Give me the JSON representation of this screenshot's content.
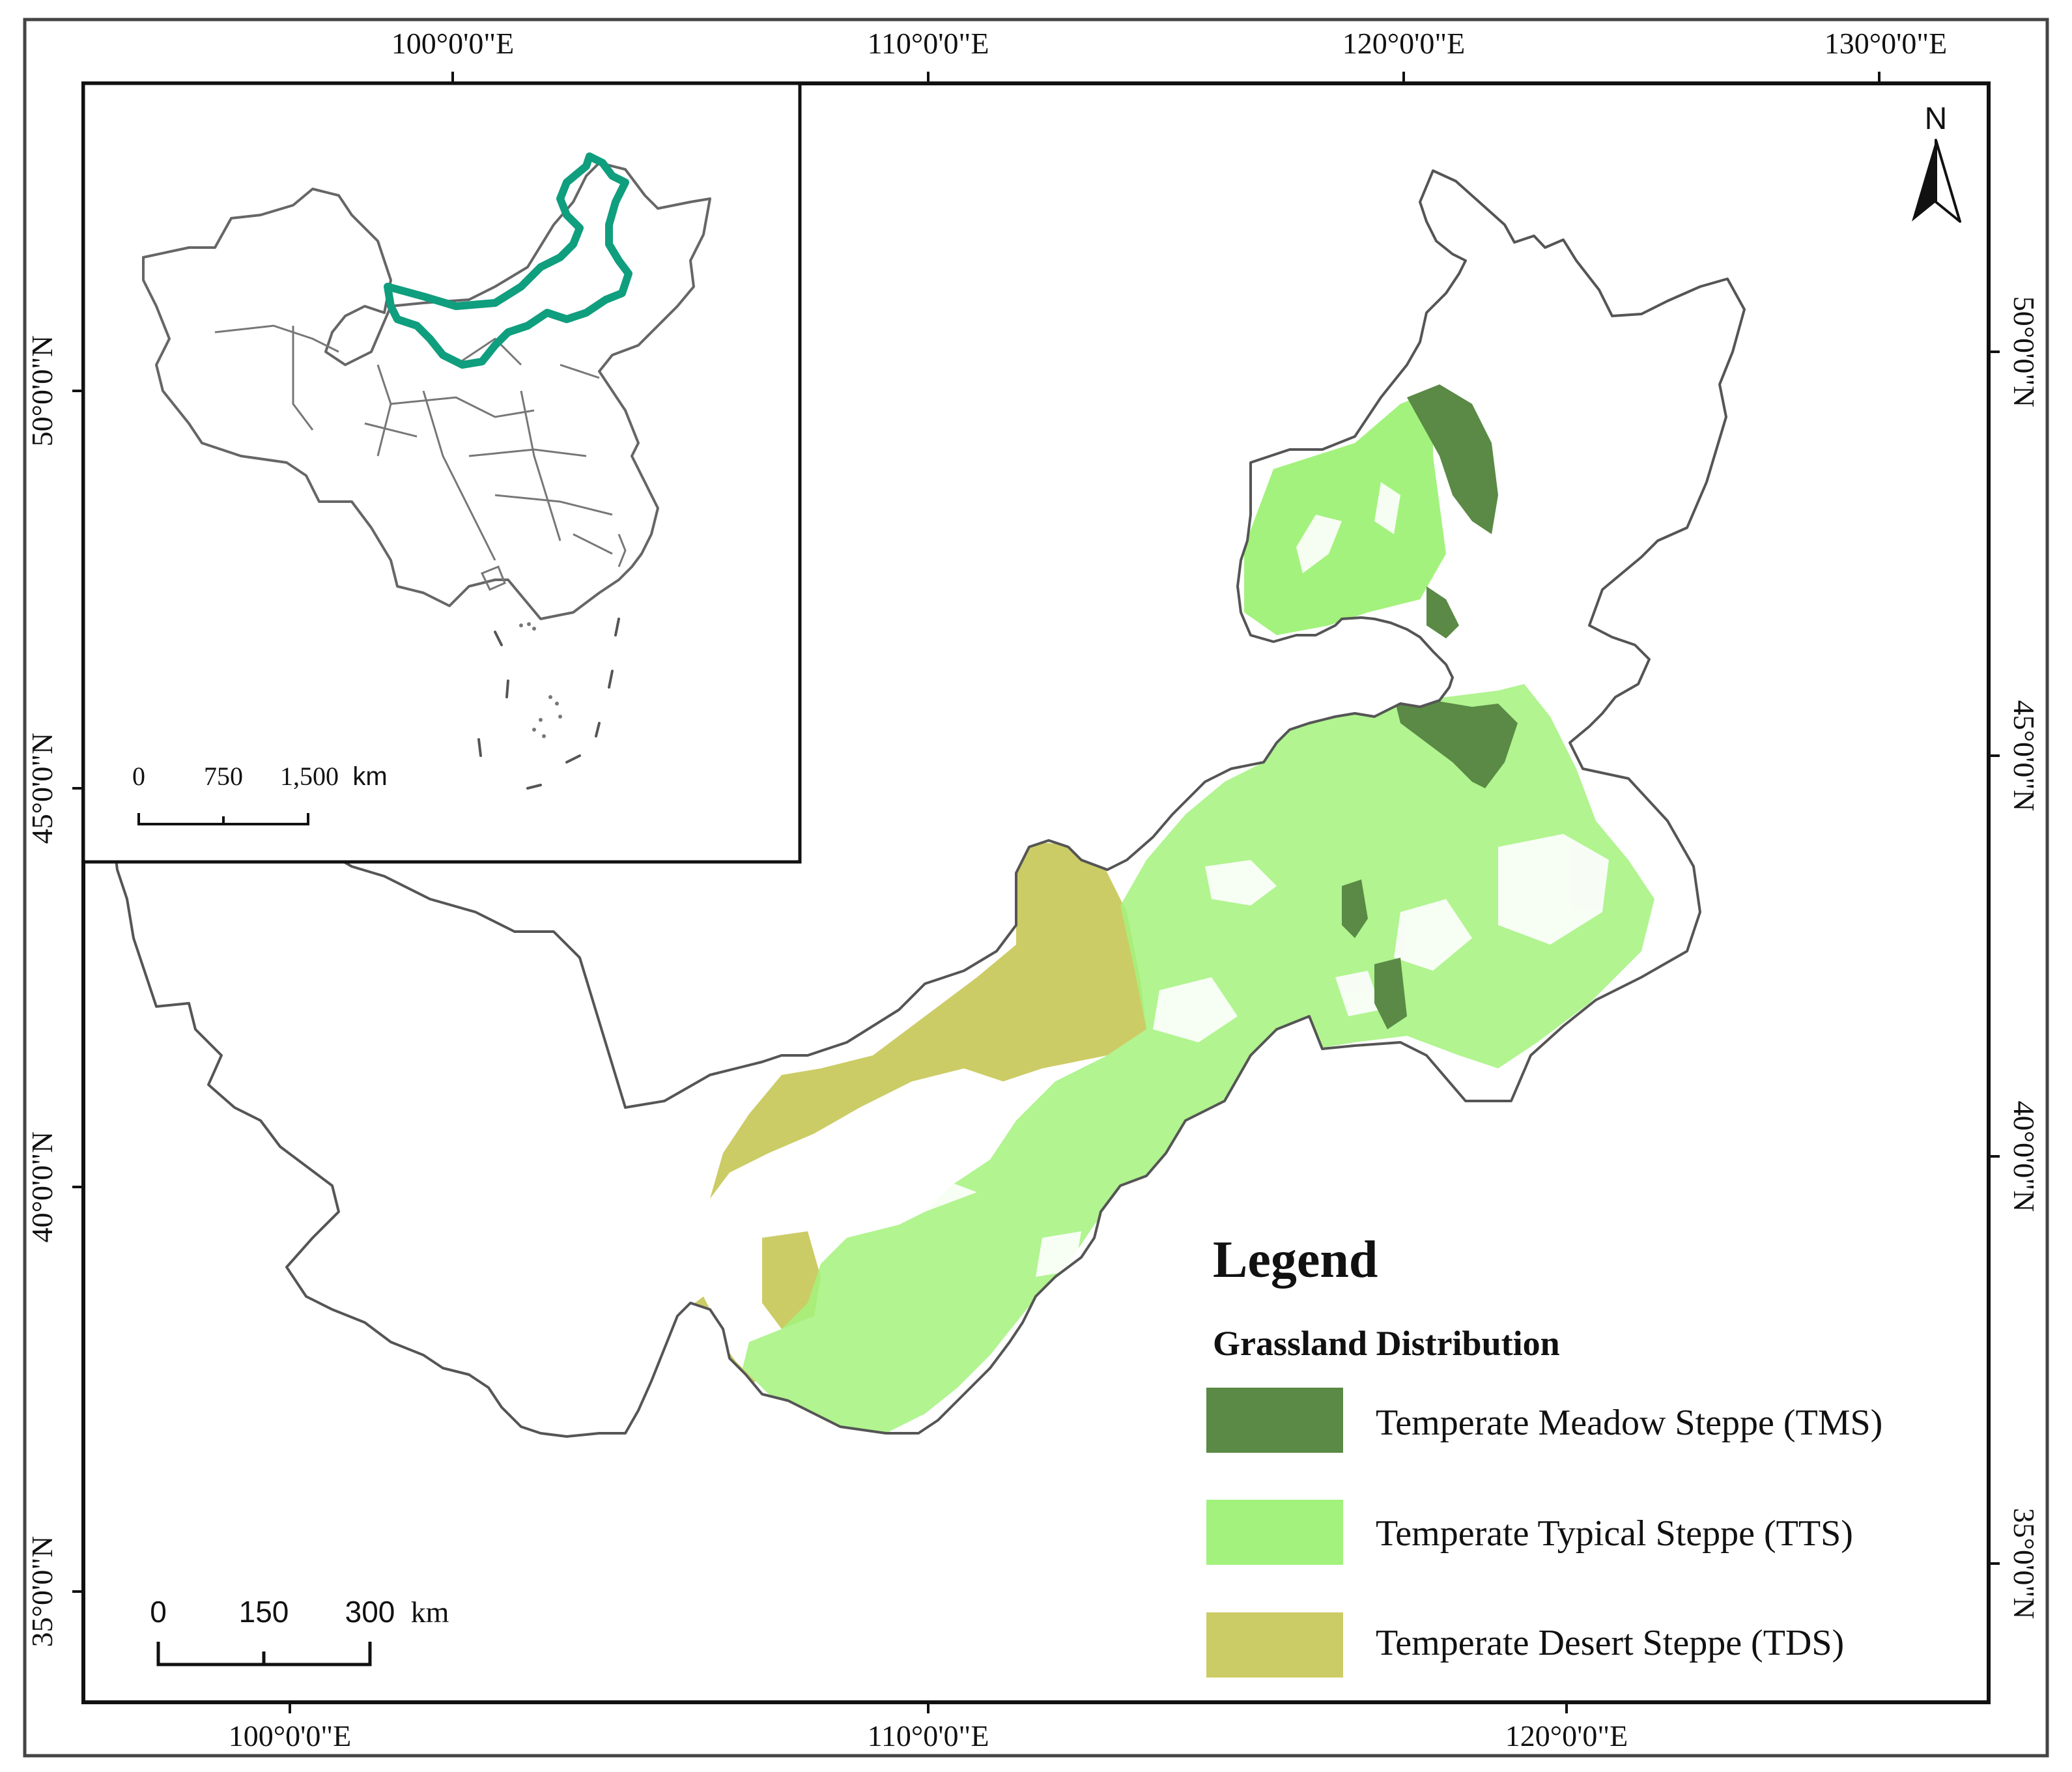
{
  "outer_axes": {
    "top_labels": [
      "100°0'0\"E",
      "110°0'0\"E",
      "120°0'0\"E",
      "130°0'0\"E"
    ],
    "bottom_labels": [
      "100°0'0\"E",
      "110°0'0\"E",
      "120°0'0\"E"
    ],
    "left_labels": [
      "50°0'0\"N",
      "45°0'0\"N",
      "40°0'0\"N",
      "35°0'0\"N"
    ],
    "right_labels": [
      "50°0'0\"N",
      "45°0'0\"N",
      "40°0'0\"N",
      "35°0'0\"N"
    ]
  },
  "north_arrow": {
    "label": "N"
  },
  "inset": {
    "scale": {
      "labels": [
        "0",
        "750",
        "1,500"
      ],
      "unit": "km"
    },
    "highlight_color": "#0f9e7e"
  },
  "main_scale": {
    "labels": [
      "0",
      "150",
      "300"
    ],
    "unit": "km"
  },
  "legend": {
    "title": "Legend",
    "subtitle": "Grassland Distribution",
    "items": [
      {
        "label": "Temperate Meadow Steppe (TMS)",
        "color": "#5a8a45"
      },
      {
        "label": "Temperate Typical Steppe (TTS)",
        "color": "#a3f27d"
      },
      {
        "label": "Temperate Desert Steppe (TDS)",
        "color": "#cccc66"
      }
    ]
  }
}
